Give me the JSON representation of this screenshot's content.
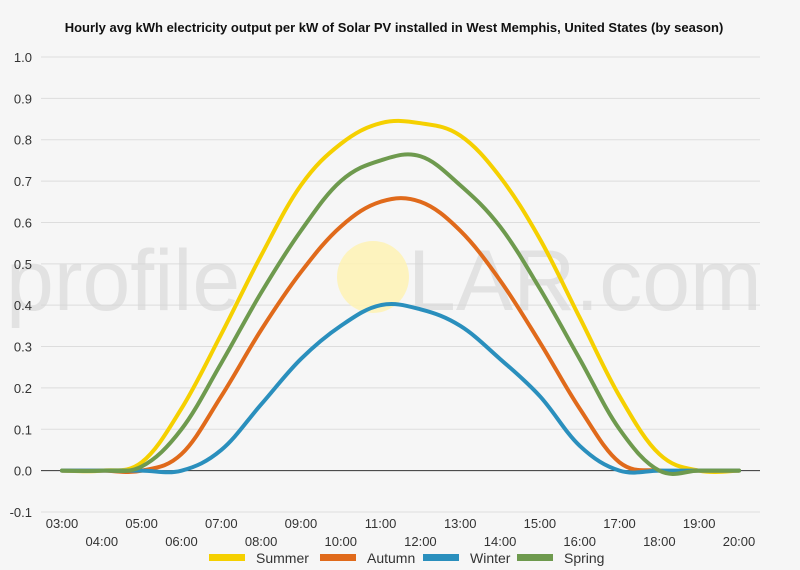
{
  "chart_data": {
    "type": "line",
    "title": "Hourly avg kWh electricity output per kW of Solar PV installed in West Memphis, United States (by season)",
    "xlabel": "",
    "ylabel": "",
    "ylim": [
      -0.1,
      1.0
    ],
    "yticks": [
      "-0.1",
      "0.0",
      "0.1",
      "0.2",
      "0.3",
      "0.4",
      "0.5",
      "0.6",
      "0.7",
      "0.8",
      "0.9",
      "1.0"
    ],
    "categories": [
      "03:00",
      "04:00",
      "05:00",
      "06:00",
      "07:00",
      "08:00",
      "09:00",
      "10:00",
      "11:00",
      "12:00",
      "13:00",
      "14:00",
      "15:00",
      "16:00",
      "17:00",
      "18:00",
      "19:00",
      "20:00"
    ],
    "grid": true,
    "legend": "bottom",
    "series": [
      {
        "name": "Summer",
        "color": "#f5d000",
        "values": [
          0.0,
          0.0,
          0.02,
          0.15,
          0.33,
          0.52,
          0.69,
          0.79,
          0.84,
          0.84,
          0.81,
          0.71,
          0.56,
          0.37,
          0.18,
          0.04,
          0.0,
          0.0
        ]
      },
      {
        "name": "Autumn",
        "color": "#e06a1b",
        "values": [
          0.0,
          0.0,
          0.0,
          0.04,
          0.18,
          0.34,
          0.48,
          0.59,
          0.65,
          0.65,
          0.58,
          0.46,
          0.31,
          0.15,
          0.02,
          0.0,
          0.0,
          0.0
        ]
      },
      {
        "name": "Winter",
        "color": "#2a8fbd",
        "values": [
          0.0,
          0.0,
          0.0,
          0.0,
          0.05,
          0.16,
          0.27,
          0.35,
          0.4,
          0.39,
          0.35,
          0.27,
          0.18,
          0.06,
          0.0,
          0.0,
          0.0,
          0.0
        ]
      },
      {
        "name": "Spring",
        "color": "#6e9a4e",
        "values": [
          0.0,
          0.0,
          0.01,
          0.1,
          0.26,
          0.43,
          0.58,
          0.7,
          0.75,
          0.76,
          0.69,
          0.59,
          0.44,
          0.27,
          0.1,
          0.0,
          0.0,
          0.0
        ]
      }
    ]
  },
  "watermark": {
    "text_before": "profile",
    "text_after": "LAR.com"
  }
}
